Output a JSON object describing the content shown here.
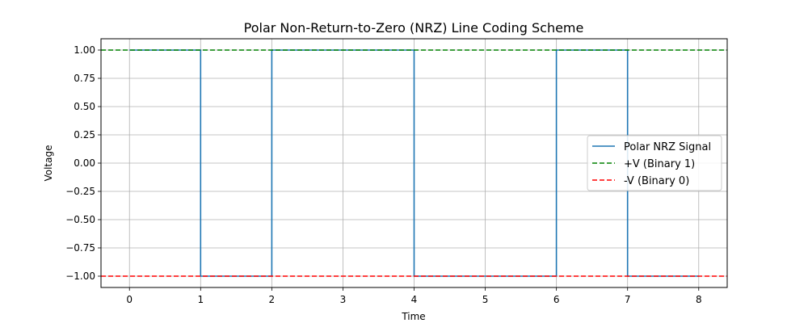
{
  "chart_data": {
    "type": "line",
    "title": "Polar Non-Return-to-Zero (NRZ) Line Coding Scheme",
    "xlabel": "Time",
    "ylabel": "Voltage",
    "xlim": [
      -0.4,
      8.4
    ],
    "ylim": [
      -1.1,
      1.1
    ],
    "xticks": [
      0,
      1,
      2,
      3,
      4,
      5,
      6,
      7,
      8
    ],
    "xtick_labels": [
      "0",
      "1",
      "2",
      "3",
      "4",
      "5",
      "6",
      "7",
      "8"
    ],
    "yticks": [
      1.0,
      0.75,
      0.5,
      0.25,
      0.0,
      -0.25,
      -0.5,
      -0.75,
      -1.0
    ],
    "ytick_labels": [
      "1.00",
      "0.75",
      "0.50",
      "0.25",
      "0.00",
      "−0.25",
      "−0.50",
      "−0.75",
      "−1.00"
    ],
    "grid": true,
    "legend_position": "center-right",
    "series": [
      {
        "name": "Polar NRZ Signal",
        "style": "solid",
        "color": "#1f77b4",
        "x": [
          0,
          1,
          1,
          2,
          2,
          3,
          4,
          4,
          5,
          6,
          6,
          7,
          7,
          8
        ],
        "y": [
          1,
          1,
          -1,
          -1,
          1,
          1,
          1,
          -1,
          -1,
          -1,
          1,
          1,
          -1,
          -1
        ]
      }
    ],
    "reference_lines": [
      {
        "name": "+V (Binary 1)",
        "y": 1,
        "style": "dashed",
        "color": "#008000"
      },
      {
        "name": "-V (Binary 0)",
        "y": -1,
        "style": "dashed",
        "color": "#ff0000"
      }
    ]
  }
}
